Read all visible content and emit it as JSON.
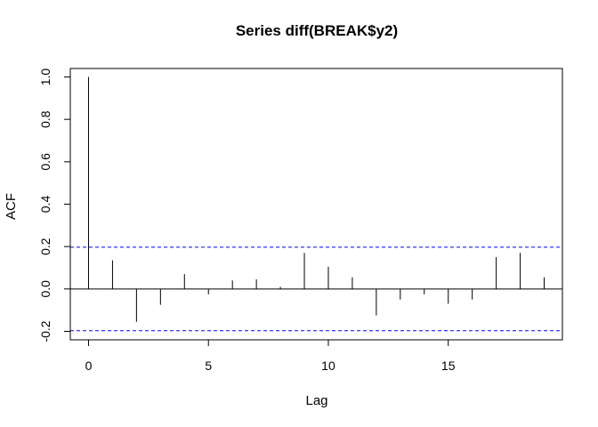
{
  "chart_data": {
    "type": "bar",
    "title": "Series  diff(BREAK$y2)",
    "xlabel": "Lag",
    "ylabel": "ACF",
    "xlim": [
      -0.76,
      19.76
    ],
    "ylim": [
      -0.24,
      1.04
    ],
    "x_ticks": [
      0,
      5,
      10,
      15
    ],
    "y_ticks": [
      -0.2,
      0.0,
      0.2,
      0.4,
      0.6,
      0.8,
      1.0
    ],
    "x_tick_labels": [
      "0",
      "5",
      "10",
      "15"
    ],
    "y_tick_labels": [
      "-0.2",
      "0.0",
      "0.2",
      "0.4",
      "0.6",
      "0.8",
      "1.0"
    ],
    "lags": [
      0,
      1,
      2,
      3,
      4,
      5,
      6,
      7,
      8,
      9,
      10,
      11,
      12,
      13,
      14,
      15,
      16,
      17,
      18,
      19
    ],
    "acf": [
      1.0,
      0.135,
      -0.155,
      -0.075,
      0.07,
      -0.025,
      0.04,
      0.045,
      0.01,
      0.17,
      0.105,
      0.055,
      -0.125,
      -0.05,
      -0.025,
      -0.07,
      -0.05,
      0.15,
      0.17,
      0.055
    ],
    "confidence_bound": 0.197,
    "confidence_line_color": "#0000ff",
    "zero_line": true,
    "grid": false,
    "legend": "none"
  }
}
